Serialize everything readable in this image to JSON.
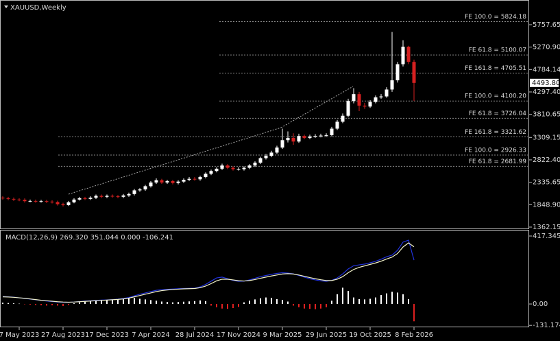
{
  "chart_data": [
    {
      "type": "candlestick",
      "title": "XAUUSD,Weekly",
      "categories": [
        null,
        null,
        null,
        "7 May 2023",
        null,
        null,
        null,
        null,
        null,
        null,
        null,
        "27 Aug 2023",
        null,
        null,
        null,
        null,
        null,
        null,
        null,
        "17 Dec 2023",
        null,
        null,
        null,
        null,
        null,
        null,
        null,
        "7 Apr 2024",
        null,
        null,
        null,
        null,
        null,
        null,
        null,
        "28 Jul 2024",
        null,
        null,
        null,
        null,
        null,
        null,
        null,
        "17 Nov 2024",
        null,
        null,
        null,
        null,
        null,
        null,
        null,
        "9 Mar 2025",
        null,
        null,
        null,
        null,
        null,
        null,
        null,
        "29 Jun 2025",
        null,
        null,
        null,
        null,
        null,
        null,
        null,
        "19 Oct 2025",
        null,
        null,
        null,
        null,
        null,
        null,
        null,
        "8 Feb 2026"
      ],
      "open": [
        2000,
        1990,
        1975,
        1960,
        1955,
        1925,
        1930,
        1920,
        1925,
        1915,
        1905,
        1860,
        1840,
        1900,
        1960,
        1990,
        1975,
        2000,
        2040,
        2020,
        2040,
        2030,
        2020,
        2050,
        2080,
        2160,
        2180,
        2250,
        2330,
        2380,
        2330,
        2360,
        2320,
        2350,
        2390,
        2410,
        2400,
        2450,
        2520,
        2580,
        2630,
        2700,
        2650,
        2620,
        2620,
        2650,
        2700,
        2760,
        2860,
        2910,
        2980,
        3090,
        3250,
        3300,
        3220,
        3340,
        3300,
        3330,
        3340,
        3350,
        3360,
        3500,
        3650,
        3780,
        4100,
        4250,
        4000,
        3980,
        4080,
        4180,
        4200,
        4350,
        4550,
        4900,
        5280,
        4950
      ],
      "high": [
        2030,
        2020,
        2005,
        1990,
        1985,
        1960,
        1960,
        1955,
        1955,
        1945,
        1935,
        1890,
        1930,
        1990,
        2020,
        2020,
        2030,
        2070,
        2070,
        2070,
        2070,
        2060,
        2080,
        2110,
        2190,
        2210,
        2280,
        2360,
        2420,
        2410,
        2390,
        2390,
        2380,
        2420,
        2450,
        2450,
        2480,
        2550,
        2610,
        2660,
        2740,
        2730,
        2680,
        2660,
        2680,
        2730,
        2790,
        2890,
        2950,
        3020,
        3130,
        3500,
        3440,
        3400,
        3390,
        3370,
        3370,
        3380,
        3390,
        3400,
        3540,
        3690,
        3830,
        4150,
        4380,
        4300,
        4060,
        4120,
        4220,
        4250,
        4400,
        5600,
        4950,
        5420,
        5300,
        5000
      ],
      "low": [
        1960,
        1945,
        1930,
        1925,
        1895,
        1900,
        1890,
        1895,
        1885,
        1875,
        1830,
        1810,
        1820,
        1880,
        1940,
        1950,
        1950,
        1970,
        1990,
        1990,
        2000,
        1990,
        1990,
        2020,
        2050,
        2130,
        2150,
        2220,
        2300,
        2300,
        2300,
        2290,
        2290,
        2320,
        2360,
        2370,
        2370,
        2420,
        2490,
        2550,
        2600,
        2620,
        2590,
        2590,
        2590,
        2620,
        2670,
        2730,
        2830,
        2880,
        2950,
        3060,
        3200,
        3150,
        3190,
        3270,
        3270,
        3300,
        3310,
        3320,
        3330,
        3470,
        3620,
        3750,
        4050,
        3880,
        3930,
        3950,
        4050,
        4150,
        4170,
        4300,
        4500,
        4850,
        4900,
        4100
      ],
      "close": [
        1990,
        1975,
        1960,
        1955,
        1925,
        1930,
        1920,
        1925,
        1915,
        1905,
        1860,
        1840,
        1900,
        1960,
        1990,
        1975,
        2000,
        2040,
        2020,
        2040,
        2030,
        2020,
        2050,
        2080,
        2160,
        2180,
        2250,
        2330,
        2380,
        2330,
        2360,
        2320,
        2350,
        2390,
        2410,
        2400,
        2450,
        2520,
        2580,
        2630,
        2700,
        2650,
        2620,
        2620,
        2650,
        2700,
        2760,
        2860,
        2910,
        2980,
        3090,
        3250,
        3300,
        3220,
        3340,
        3300,
        3330,
        3340,
        3350,
        3360,
        3500,
        3650,
        3780,
        4100,
        4250,
        4000,
        3980,
        4080,
        4180,
        4200,
        4350,
        4550,
        4900,
        5280,
        4950,
        4493.8
      ],
      "up_color": "#ffffff",
      "down_color": "#d62020",
      "ylim": [
        1332,
        6294
      ],
      "yticks": [
        5757.65,
        {
          "value": 5270.9,
          "label": "5270.90"
        },
        4784.14,
        {
          "value": 4297.4,
          "label": "4297.40"
        },
        3810.65,
        3309.15,
        {
          "value": 2822.4,
          "label": "2822.40"
        },
        2335.65,
        {
          "value": 1848.9,
          "label": "1848.90"
        },
        1362.15
      ],
      "last_price": {
        "value": 4493.8,
        "label": "4493.80"
      },
      "levels": [
        {
          "value": 5824.18,
          "label": "FE 100.0 = 5824.18"
        },
        {
          "value": 5100.07,
          "label": "FE 61.8 = 5100.07"
        },
        {
          "value": 4705.51,
          "label": "FE 161.8 = 4705.51"
        },
        {
          "value": 4100.2,
          "label": "FE 100.0 = 4100.20"
        },
        {
          "value": 3726.04,
          "label": "FE 61.8 = 3726.04"
        },
        {
          "value": 3321.62,
          "label": "FE 161.8 = 3321.62"
        },
        {
          "value": 2926.33,
          "label": "FE 100.0 = 2926.33"
        },
        {
          "value": 2681.99,
          "label": "FE 61.8 = 2681.99"
        }
      ]
    },
    {
      "type": "macd",
      "title": "MACD(12,26,9) 269.320 351.044 0.000 -106.241",
      "ylim": [
        -143,
        451
      ],
      "yticks": [
        417.345,
        {
          "value": 0,
          "label": "0.00"
        },
        -131.174
      ],
      "series": [
        {
          "type": "bar",
          "color": "#ffffff",
          "negative_color": "#e02020",
          "values": [
            8,
            6,
            4,
            2,
            -2,
            -4,
            -6,
            -8,
            -10,
            -8,
            -10,
            -12,
            -6,
            4,
            10,
            14,
            18,
            20,
            22,
            25,
            28,
            30,
            35,
            40,
            38,
            32,
            28,
            24,
            20,
            15,
            12,
            10,
            12,
            14,
            16,
            18,
            22,
            18,
            -10,
            -20,
            -28,
            -30,
            -25,
            -18,
            10,
            20,
            28,
            35,
            40,
            38,
            30,
            25,
            15,
            -10,
            -20,
            -28,
            -30,
            -32,
            -28,
            -20,
            20,
            60,
            100,
            80,
            40,
            30,
            28,
            32,
            40,
            55,
            65,
            75,
            70,
            60,
            30,
            -106.241
          ]
        },
        {
          "type": "line",
          "color": "#2233dd",
          "values": [
            46,
            44,
            42,
            38,
            34,
            30,
            26,
            22,
            18,
            15,
            12,
            10,
            10,
            12,
            15,
            18,
            20,
            22,
            24,
            25,
            27,
            30,
            34,
            40,
            50,
            60,
            68,
            76,
            84,
            88,
            90,
            92,
            94,
            95,
            96,
            97,
            105,
            120,
            140,
            160,
            165,
            155,
            145,
            139,
            140,
            148,
            158,
            168,
            175,
            182,
            188,
            192,
            190,
            185,
            175,
            165,
            155,
            148,
            142,
            139,
            145,
            160,
            185,
            215,
            235,
            240,
            245,
            253,
            262,
            275,
            290,
            300,
            330,
            380,
            392,
            269.32
          ]
        },
        {
          "type": "line",
          "color": "#f2f2c8",
          "values": [
            44,
            43,
            41,
            38,
            35,
            31,
            27,
            23,
            20,
            17,
            14,
            12,
            11,
            12,
            14,
            16,
            18,
            20,
            22,
            24,
            26,
            28,
            31,
            36,
            44,
            52,
            60,
            68,
            76,
            82,
            86,
            89,
            91,
            93,
            94,
            95,
            100,
            110,
            125,
            142,
            152,
            152,
            148,
            143,
            141,
            144,
            150,
            158,
            165,
            172,
            178,
            184,
            186,
            184,
            178,
            170,
            162,
            155,
            149,
            144,
            144,
            152,
            168,
            192,
            212,
            225,
            234,
            243,
            252,
            263,
            276,
            288,
            310,
            350,
            375,
            351.04
          ]
        }
      ]
    }
  ]
}
